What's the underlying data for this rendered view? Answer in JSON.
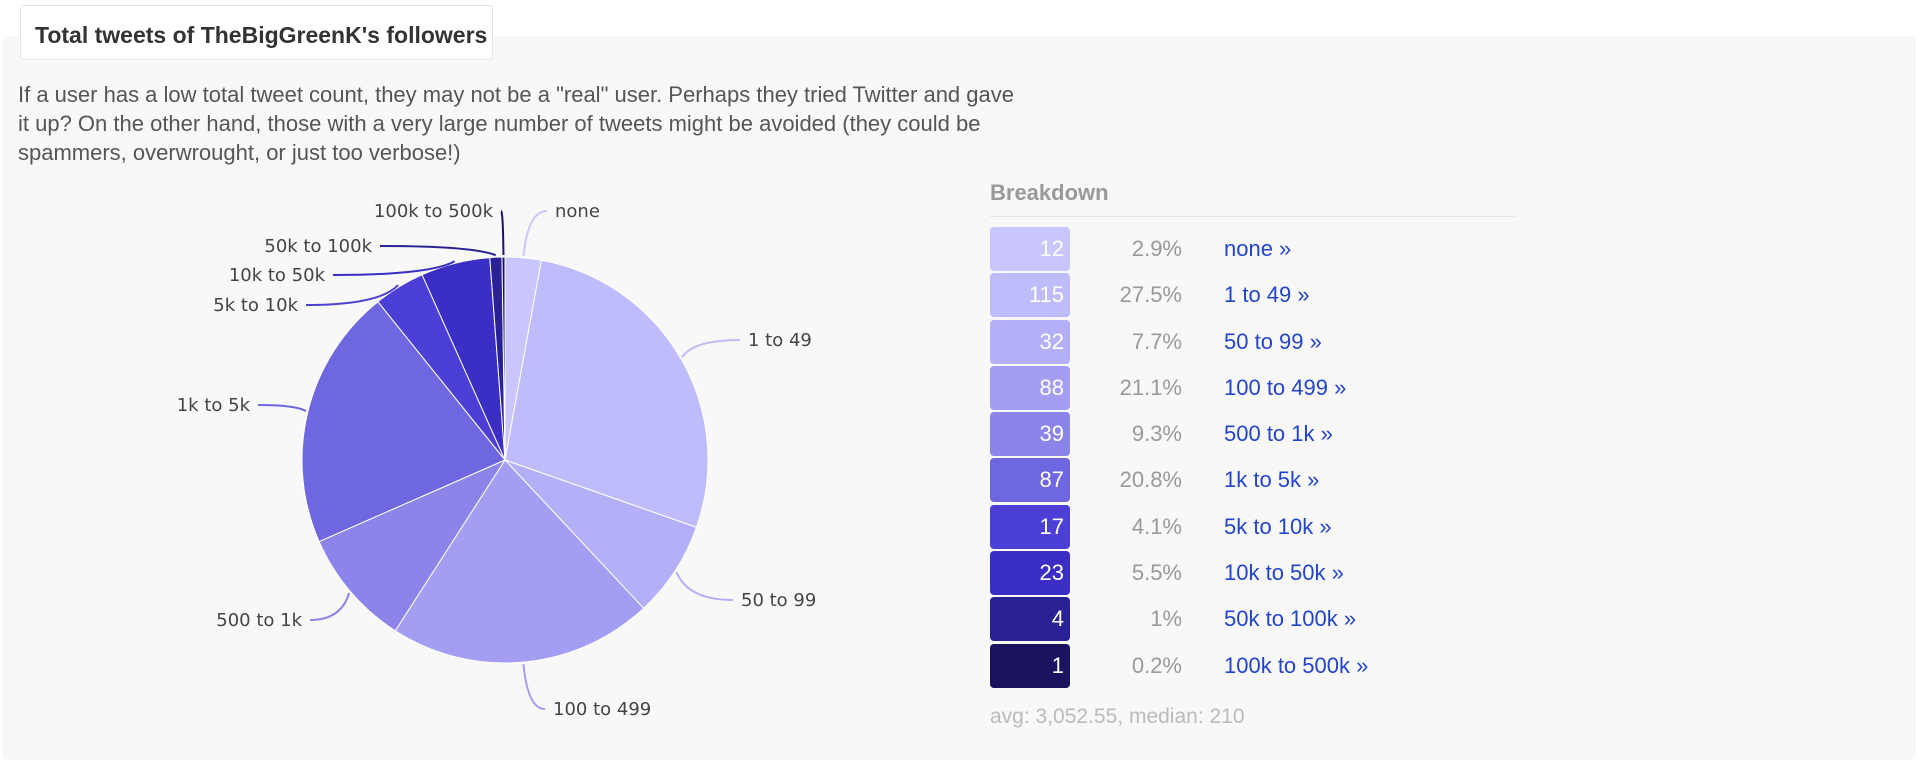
{
  "title": "Total tweets of TheBigGreenK's followers",
  "description": "If a user has a low total tweet count, they may not be a \"real\" user. Perhaps they tried Twitter and gave it up? On the other hand, those with a very large number of tweets might be avoided (they could be spammers, overwrought, or just too verbose!)",
  "breakdown_title": "Breakdown",
  "stats": {
    "avg_label": "avg: ",
    "avg": "3,052.55",
    "sep": ", ",
    "median_label": "median: ",
    "median": "210"
  },
  "chart_data": {
    "type": "pie",
    "title": "",
    "categories": [
      "none",
      "1 to 49",
      "50 to 99",
      "100 to 499",
      "500 to 1k",
      "1k to 5k",
      "5k to 10k",
      "10k to 50k",
      "50k to 100k",
      "100k to 500k"
    ],
    "values": [
      12,
      115,
      32,
      88,
      39,
      87,
      17,
      23,
      4,
      1
    ],
    "percents": [
      "2.9%",
      "27.5%",
      "7.7%",
      "21.1%",
      "9.3%",
      "20.8%",
      "4.1%",
      "5.5%",
      "1%",
      "0.2%"
    ],
    "link_labels": [
      "none »",
      "1 to 49 »",
      "50 to 99 »",
      "100 to 499 »",
      "500 to 1k »",
      "1k to 5k »",
      "5k to 10k »",
      "10k to 50k »",
      "50k to 100k »",
      "100k to 500k »"
    ],
    "colors": [
      "#c8c6fc",
      "#bfbcfb",
      "#b4b0f8",
      "#a39ef2",
      "#8b85ea",
      "#6f67e0",
      "#4b3fd6",
      "#3a2ec5",
      "#2b2197",
      "#1a1360"
    ]
  }
}
